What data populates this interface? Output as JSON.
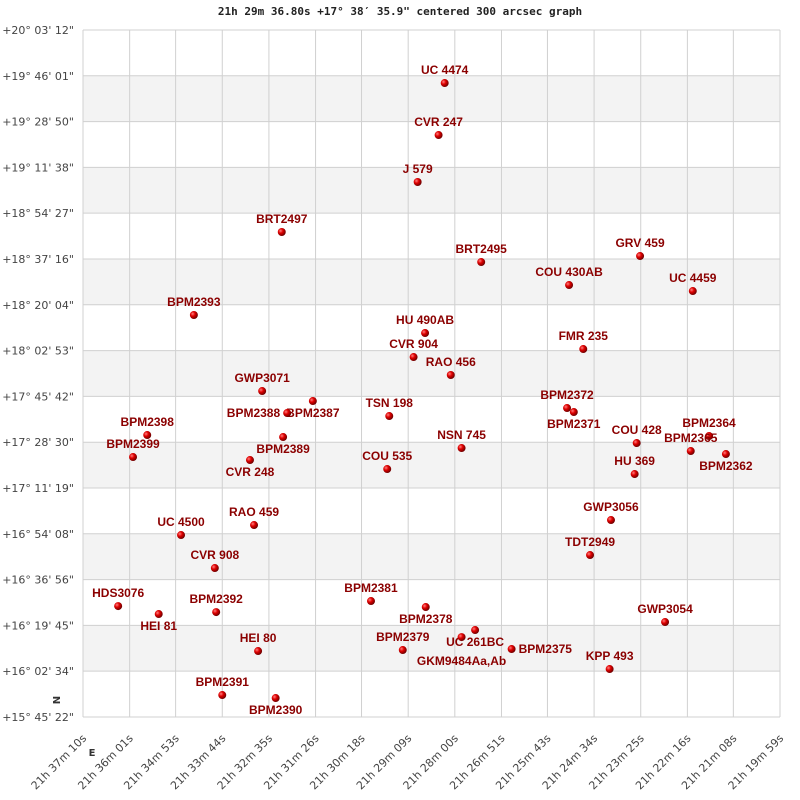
{
  "chart_data": {
    "type": "scatter",
    "title": "21h 29m 36.80s +17° 38′ 35.9\" centered 300 arcsec graph",
    "grid": true,
    "x_ticks": [
      "21h 37m 10s",
      "21h 36m 01s",
      "21h 34m 53s",
      "21h 33m 44s",
      "21h 32m 35s",
      "21h 31m 26s",
      "21h 30m 18s",
      "21h 29m 09s",
      "21h 28m 00s",
      "21h 26m 51s",
      "21h 25m 43s",
      "21h 24m 34s",
      "21h 23m 25s",
      "21h 22m 16s",
      "21h 21m 08s",
      "21h 19m 59s"
    ],
    "y_ticks": [
      "+20° 03' 12\"",
      "+19° 46' 01\"",
      "+19° 28' 50\"",
      "+19° 11' 38\"",
      "+18° 54' 27\"",
      "+18° 37' 16\"",
      "+18° 20' 04\"",
      "+18° 02' 53\"",
      "+17° 45' 42\"",
      "+17° 28' 30\"",
      "+17° 11' 19\"",
      "+16° 54' 08\"",
      "+16° 36' 56\"",
      "+16° 19' 45\"",
      "+16° 02' 34\"",
      "+15° 45' 22\""
    ],
    "xlim": [
      "21h 37m 10s",
      "21h 19m 59s"
    ],
    "ylim": [
      "+15° 45' 22\"",
      "+20° 03' 12\""
    ],
    "direction_labels": {
      "north": "N",
      "east": "E"
    },
    "colors": {
      "point": "#dd0000",
      "label": "#8b0000",
      "band": "#f3f3f3",
      "grid": "#d0d0d0"
    },
    "points": [
      {
        "label": "UC 4474",
        "ra": "21h 28m 15s",
        "dec": "+19° 43' 18\""
      },
      {
        "label": "CVR 247",
        "ra": "21h 28m 24s",
        "dec": "+19° 23' 47\""
      },
      {
        "label": "J  579",
        "ra": "21h 28m 55s",
        "dec": "+19° 06' 09\""
      },
      {
        "label": "BRT2497",
        "ra": "21h 32m 16s",
        "dec": "+18° 47' 23\""
      },
      {
        "label": "BRT2495",
        "ra": "21h 27m 21s",
        "dec": "+18° 36' 07\""
      },
      {
        "label": "GRV 459",
        "ra": "21h 23m 26s",
        "dec": "+18° 38' 22\""
      },
      {
        "label": "COU 430AB",
        "ra": "21h 25m 11s",
        "dec": "+18° 27' 29\""
      },
      {
        "label": "UC 4459",
        "ra": "21h 22m 08s",
        "dec": "+18° 25' 14\""
      },
      {
        "label": "BPM2393",
        "ra": "21h 34m 26s",
        "dec": "+18° 16' 14\""
      },
      {
        "label": "HU  490AB",
        "ra": "21h 28m 44s",
        "dec": "+18° 09' 28\""
      },
      {
        "label": "FMR 235",
        "ra": "21h 24m 50s",
        "dec": "+18° 03' 28\""
      },
      {
        "label": "CVR 904",
        "ra": "21h 29m 01s",
        "dec": "+18° 00' 28\""
      },
      {
        "label": "RAO 456",
        "ra": "21h 28m 06s",
        "dec": "+17° 53' 43\""
      },
      {
        "label": "GWP3071",
        "ra": "21h 32m 45s",
        "dec": "+17° 47' 42\""
      },
      {
        "label": "BPM2387",
        "ra": "21h 31m 30s",
        "dec": "+17° 43' 57\""
      },
      {
        "label": "BPM2388",
        "ra": "21h 32m 08s",
        "dec": "+17° 39' 27\""
      },
      {
        "label": "TSN 198",
        "ra": "21h 29m 37s",
        "dec": "+17° 38' 19\""
      },
      {
        "label": "BPM2372",
        "ra": "21h 25m 14s",
        "dec": "+17° 41' 19\""
      },
      {
        "label": "BPM2371",
        "ra": "21h 25m 04s",
        "dec": "+17° 39' 49\""
      },
      {
        "label": "BPM2398",
        "ra": "21h 35m 35s",
        "dec": "+17° 31' 11\""
      },
      {
        "label": "BPM2389",
        "ra": "21h 32m 14s",
        "dec": "+17° 30' 26\""
      },
      {
        "label": "COU 428",
        "ra": "21h 23m 31s",
        "dec": "+17° 28' 11\""
      },
      {
        "label": "BPM2364",
        "ra": "21h 21m 44s",
        "dec": "+17° 30' 49\""
      },
      {
        "label": "BPM2365",
        "ra": "21h 22m 11s",
        "dec": "+17° 25' 11\""
      },
      {
        "label": "BPM2362",
        "ra": "21h 21m 19s",
        "dec": "+17° 24' 03\""
      },
      {
        "label": "BPM2399",
        "ra": "21h 35m 56s",
        "dec": "+17° 22' 56\""
      },
      {
        "label": "NSN 745",
        "ra": "21h 27m 50s",
        "dec": "+17° 26' 19\""
      },
      {
        "label": "CVR 248",
        "ra": "21h 33m 03s",
        "dec": "+17° 21' 48\""
      },
      {
        "label": "COU 535",
        "ra": "21h 29m 40s",
        "dec": "+17° 18' 26\""
      },
      {
        "label": "HU  369",
        "ra": "21h 23m 34s",
        "dec": "+17° 16' 33\""
      },
      {
        "label": "GWP3056",
        "ra": "21h 24m 09s",
        "dec": "+16° 59' 17\""
      },
      {
        "label": "RAO 459",
        "ra": "21h 32m 57s",
        "dec": "+16° 57' 25\""
      },
      {
        "label": "UC 4500",
        "ra": "21h 34m 45s",
        "dec": "+16° 53' 39\""
      },
      {
        "label": "TDT2949",
        "ra": "21h 24m 40s",
        "dec": "+16° 46' 09\""
      },
      {
        "label": "CVR 908",
        "ra": "21h 33m 55s",
        "dec": "+16° 41' 16\""
      },
      {
        "label": "BPM2381",
        "ra": "21h 30m 04s",
        "dec": "+16° 28' 53\""
      },
      {
        "label": "HDS3076",
        "ra": "21h 36m 18s",
        "dec": "+16° 27' 00\""
      },
      {
        "label": "BPM2378",
        "ra": "21h 28m 43s",
        "dec": "+16° 26' 38\""
      },
      {
        "label": "HEI  81",
        "ra": "21h 35m 18s",
        "dec": "+16° 24' 00\""
      },
      {
        "label": "BPM2392",
        "ra": "21h 33m 53s",
        "dec": "+16° 24' 45\""
      },
      {
        "label": "GWP3054",
        "ra": "21h 22m 49s",
        "dec": "+16° 21' 00\""
      },
      {
        "label": "UC  261BC",
        "ra": "21h 27m 30s",
        "dec": "+16° 18' 00\""
      },
      {
        "label": "GKM9484Aa,Ab",
        "ra": "21h 27m 50s",
        "dec": "+16° 15' 22\""
      },
      {
        "label": "BPM2379",
        "ra": "21h 29m 17s",
        "dec": "+16° 10' 30\""
      },
      {
        "label": "BPM2375",
        "ra": "21h 26m 36s",
        "dec": "+16° 10' 52\""
      },
      {
        "label": "HEI  80",
        "ra": "21h 32m 51s",
        "dec": "+16° 10' 07\""
      },
      {
        "label": "KPP 493",
        "ra": "21h 24m 11s",
        "dec": "+16° 03' 22\""
      },
      {
        "label": "BPM2391",
        "ra": "21h 33m 44s",
        "dec": "+15° 53' 36\""
      },
      {
        "label": "BPM2390",
        "ra": "21h 32m 25s",
        "dec": "+15° 52' 29\""
      }
    ]
  }
}
